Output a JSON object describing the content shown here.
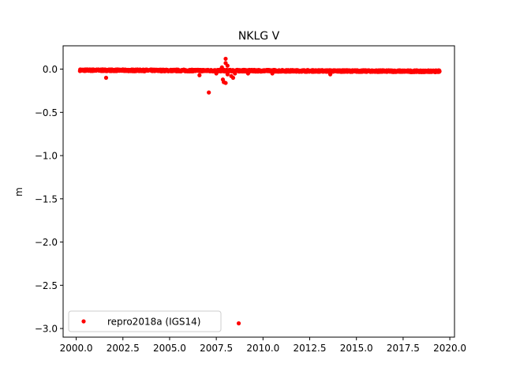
{
  "chart_data": {
    "type": "scatter",
    "title": "NKLG V",
    "xlabel": "",
    "ylabel": "m",
    "xlim": [
      1999.3,
      2020.25
    ],
    "ylim": [
      -3.1,
      0.27
    ],
    "xticks": [
      2000.0,
      2002.5,
      2005.0,
      2007.5,
      2010.0,
      2012.5,
      2015.0,
      2017.5,
      2020.0
    ],
    "xtick_labels": [
      "2000.0",
      "2002.5",
      "2005.0",
      "2007.5",
      "2010.0",
      "2012.5",
      "2015.0",
      "2017.5",
      "2020.0"
    ],
    "yticks": [
      0.0,
      -0.5,
      -1.0,
      -1.5,
      -2.0,
      -2.5,
      -3.0
    ],
    "ytick_labels": [
      "0.0",
      "−0.5",
      "−1.0",
      "−1.5",
      "−2.0",
      "−2.5",
      "−3.0"
    ],
    "grid": false,
    "legend_position": "lower-left",
    "series": [
      {
        "name": "repro2018a (IGS14)",
        "color": "#ff0000",
        "marker": "circle",
        "band": {
          "x_start": 2000.2,
          "x_end": 2019.45,
          "y_start": -0.012,
          "y_end": -0.025,
          "scatter": 0.01
        },
        "outliers": [
          {
            "x": 2001.6,
            "y": -0.1
          },
          {
            "x": 2006.6,
            "y": -0.07
          },
          {
            "x": 2007.1,
            "y": -0.27
          },
          {
            "x": 2007.5,
            "y": -0.05
          },
          {
            "x": 2007.8,
            "y": 0.02
          },
          {
            "x": 2007.85,
            "y": -0.12
          },
          {
            "x": 2007.9,
            "y": -0.15
          },
          {
            "x": 2008.0,
            "y": -0.16
          },
          {
            "x": 2008.0,
            "y": 0.12
          },
          {
            "x": 2008.0,
            "y": 0.07
          },
          {
            "x": 2008.1,
            "y": 0.04
          },
          {
            "x": 2008.1,
            "y": -0.06
          },
          {
            "x": 2008.3,
            "y": -0.08
          },
          {
            "x": 2008.4,
            "y": -0.1
          },
          {
            "x": 2008.5,
            "y": -0.05
          },
          {
            "x": 2008.7,
            "y": -2.94
          },
          {
            "x": 2009.2,
            "y": -0.05
          },
          {
            "x": 2010.5,
            "y": -0.05
          },
          {
            "x": 2013.6,
            "y": -0.06
          }
        ]
      }
    ]
  }
}
